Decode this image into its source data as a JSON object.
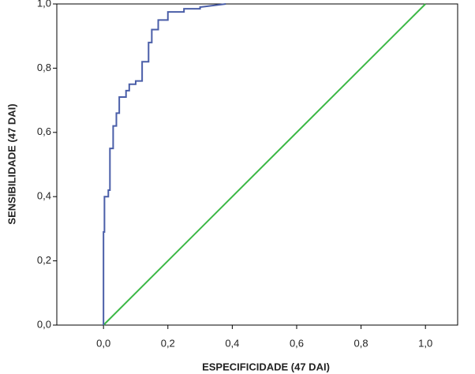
{
  "chart_data": {
    "type": "line",
    "xlabel": "ESPECIFICIDADE (47 DAI)",
    "ylabel": "SENSIBILIDADE (47 DAI)",
    "xlim": [
      -0.145,
      1.1
    ],
    "ylim": [
      0,
      1
    ],
    "xticks": [
      {
        "value": 0,
        "label": "0,0"
      },
      {
        "value": 0.2,
        "label": "0,2"
      },
      {
        "value": 0.4,
        "label": "0,4"
      },
      {
        "value": 0.6,
        "label": "0,6"
      },
      {
        "value": 0.8,
        "label": "0,8"
      },
      {
        "value": 1,
        "label": "1,0"
      }
    ],
    "yticks": [
      {
        "value": 0,
        "label": "0,0"
      },
      {
        "value": 0.2,
        "label": "0,2"
      },
      {
        "value": 0.4,
        "label": "0,4"
      },
      {
        "value": 0.6,
        "label": "0,6"
      },
      {
        "value": 0.8,
        "label": "0,8"
      },
      {
        "value": 1,
        "label": "1,0"
      }
    ],
    "series": [
      {
        "color": "#4a5ea8",
        "x": [
          0,
          0,
          0.003,
          0.003,
          0.015,
          0.015,
          0.02,
          0.02,
          0.03,
          0.03,
          0.04,
          0.04,
          0.049,
          0.049,
          0.07,
          0.07,
          0.08,
          0.08,
          0.1,
          0.1,
          0.12,
          0.12,
          0.14,
          0.14,
          0.15,
          0.15,
          0.17,
          0.17,
          0.2,
          0.2,
          0.25,
          0.25,
          0.3,
          0.3,
          0.38
        ],
        "values": [
          0,
          0.29,
          0.29,
          0.4,
          0.4,
          0.42,
          0.42,
          0.55,
          0.55,
          0.62,
          0.62,
          0.66,
          0.66,
          0.71,
          0.71,
          0.73,
          0.73,
          0.75,
          0.75,
          0.76,
          0.76,
          0.82,
          0.82,
          0.88,
          0.88,
          0.92,
          0.92,
          0.95,
          0.95,
          0.975,
          0.975,
          0.985,
          0.985,
          0.99,
          1.0
        ]
      },
      {
        "color": "#3cb846",
        "x": [
          0,
          1
        ],
        "values": [
          0,
          1
        ]
      }
    ]
  }
}
